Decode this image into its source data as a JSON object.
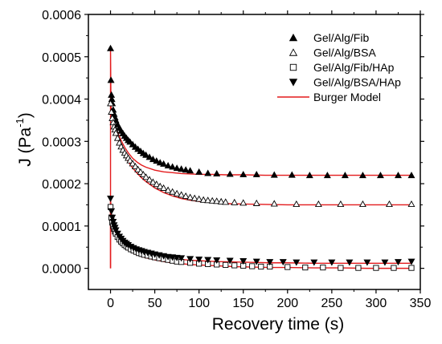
{
  "chart_data": {
    "type": "scatter",
    "xlabel": "Recovery time (s)",
    "ylabel": "J (Pa",
    "ylabel_sup": "-1",
    "ylabel_close": ")",
    "xlim": [
      -25,
      350
    ],
    "ylim": [
      -5e-05,
      0.0006
    ],
    "x_ticks": [
      0,
      50,
      100,
      150,
      200,
      250,
      300,
      350
    ],
    "x_tick_labels": [
      "0",
      "50",
      "100",
      "150",
      "200",
      "250",
      "300",
      "350"
    ],
    "y_ticks": [
      0.0,
      0.0001,
      0.0002,
      0.0003,
      0.0004,
      0.0005,
      0.0006
    ],
    "y_tick_labels": [
      "0.0000",
      "0.0001",
      "0.0002",
      "0.0003",
      "0.0004",
      "0.0005",
      "0.0006"
    ],
    "grid": false,
    "legend_position": "top-right",
    "colors": {
      "markers": "#000000",
      "model": "#e31a1c",
      "axis": "#000000"
    },
    "series": [
      {
        "name": "Gel/Alg/Fib",
        "marker": "triangle-up-filled",
        "x": [
          0,
          0.5,
          1,
          1.5,
          2,
          3,
          4,
          5,
          6,
          8,
          10,
          12,
          14,
          16,
          18,
          20,
          22,
          25,
          28,
          31,
          34,
          37,
          40,
          44,
          48,
          52,
          56,
          60,
          65,
          70,
          75,
          80,
          85,
          90,
          100,
          110,
          120,
          135,
          150,
          165,
          185,
          205,
          225,
          245,
          265,
          285,
          305,
          325,
          340
        ],
        "y": [
          0.00052,
          0.000445,
          0.00041,
          0.0004,
          0.00039,
          0.000375,
          0.000365,
          0.000357,
          0.00035,
          0.00034,
          0.000332,
          0.000325,
          0.000319,
          0.000313,
          0.000308,
          0.000303,
          0.000299,
          0.000293,
          0.000287,
          0.000282,
          0.000277,
          0.000272,
          0.000268,
          0.000263,
          0.000258,
          0.000254,
          0.00025,
          0.000247,
          0.000243,
          0.00024,
          0.000237,
          0.000235,
          0.000233,
          0.000231,
          0.000228,
          0.000225,
          0.000224,
          0.000223,
          0.000222,
          0.000222,
          0.000221,
          0.000221,
          0.00022,
          0.00022,
          0.00022,
          0.00022,
          0.00022,
          0.00022,
          0.00022
        ]
      },
      {
        "name": "Gel/Alg/BSA",
        "marker": "triangle-up-open",
        "x": [
          0,
          1,
          2,
          3,
          4,
          5,
          6,
          8,
          10,
          12,
          14,
          16,
          18,
          20,
          22,
          25,
          28,
          31,
          34,
          37,
          40,
          44,
          48,
          52,
          56,
          60,
          65,
          70,
          75,
          80,
          85,
          90,
          95,
          100,
          105,
          110,
          115,
          120,
          125,
          130,
          140,
          150,
          165,
          185,
          210,
          235,
          260,
          285,
          315,
          340
        ],
        "y": [
          0.00039,
          0.00037,
          0.000355,
          0.000345,
          0.000335,
          0.000328,
          0.00032,
          0.000308,
          0.000297,
          0.000288,
          0.00028,
          0.000273,
          0.000267,
          0.000261,
          0.000255,
          0.000248,
          0.000241,
          0.000234,
          0.000228,
          0.000222,
          0.000216,
          0.00021,
          0.000204,
          0.000199,
          0.000194,
          0.00019,
          0.000185,
          0.000181,
          0.000177,
          0.000174,
          0.000171,
          0.000168,
          0.000166,
          0.000164,
          0.000162,
          0.000161,
          0.00016,
          0.000159,
          0.000158,
          0.000157,
          0.000156,
          0.000155,
          0.000154,
          0.000153,
          0.000152,
          0.000152,
          0.000152,
          0.000152,
          0.000152,
          0.000152
        ]
      },
      {
        "name": "Gel/Alg/Fib/HAp",
        "marker": "square-open",
        "x": [
          0,
          1,
          2,
          3,
          4,
          5,
          6,
          8,
          10,
          12,
          14,
          16,
          18,
          20,
          23,
          26,
          29,
          32,
          35,
          38,
          42,
          46,
          50,
          55,
          60,
          65,
          70,
          75,
          80,
          90,
          100,
          110,
          120,
          130,
          140,
          150,
          160,
          170,
          180,
          200,
          220,
          240,
          260,
          280,
          300,
          320,
          340
        ],
        "y": [
          0.000145,
          0.00012,
          0.000108,
          0.0001,
          9.3e-05,
          8.7e-05,
          8.2e-05,
          7.4e-05,
          6.8e-05,
          6.3e-05,
          5.9e-05,
          5.5e-05,
          5.2e-05,
          4.9e-05,
          4.5e-05,
          4.2e-05,
          3.9e-05,
          3.6e-05,
          3.4e-05,
          3.2e-05,
          3e-05,
          2.8e-05,
          2.6e-05,
          2.4e-05,
          2.2e-05,
          2e-05,
          1.8e-05,
          1.6e-05,
          1.5e-05,
          1.3e-05,
          1.1e-05,
          1e-05,
          9e-06,
          8e-06,
          7e-06,
          6e-06,
          5e-06,
          4e-06,
          4e-06,
          3e-06,
          2e-06,
          2e-06,
          1e-06,
          1e-06,
          1e-06,
          1e-06,
          1e-06
        ]
      },
      {
        "name": "Gel/Alg/BSA/HAp",
        "marker": "triangle-down-filled",
        "x": [
          0,
          1,
          2,
          3,
          4,
          5,
          6,
          8,
          10,
          12,
          14,
          16,
          18,
          20,
          23,
          26,
          29,
          32,
          35,
          38,
          42,
          46,
          50,
          55,
          60,
          65,
          70,
          75,
          80,
          90,
          100,
          110,
          120,
          135,
          150,
          165,
          180,
          195,
          210,
          230,
          250,
          270,
          290,
          310,
          325,
          340
        ],
        "y": [
          0.000165,
          0.000135,
          0.00012,
          0.00011,
          0.000102,
          9.6e-05,
          9e-05,
          8.2e-05,
          7.5e-05,
          7e-05,
          6.5e-05,
          6.1e-05,
          5.8e-05,
          5.5e-05,
          5.1e-05,
          4.8e-05,
          4.5e-05,
          4.3e-05,
          4.1e-05,
          3.9e-05,
          3.7e-05,
          3.5e-05,
          3.3e-05,
          3.1e-05,
          2.9e-05,
          2.7e-05,
          2.6e-05,
          2.5e-05,
          2.4e-05,
          2.2e-05,
          2.1e-05,
          2e-05,
          1.9e-05,
          1.8e-05,
          1.7e-05,
          1.6e-05,
          1.5e-05,
          1.5e-05,
          1.4e-05,
          1.4e-05,
          1.4e-05,
          1.4e-05,
          1.4e-05,
          1.4e-05,
          1.5e-05,
          1.6e-05
        ]
      }
    ],
    "model_name": "Burger Model",
    "model_curves": [
      {
        "x": [
          0,
          0,
          0.5,
          1,
          2,
          3,
          5,
          7,
          10,
          13,
          16,
          20,
          25,
          30,
          35,
          40,
          50,
          60,
          70,
          80,
          90,
          100,
          115,
          130,
          150,
          175,
          200,
          225,
          250,
          275,
          300,
          320,
          340
        ],
        "y": [
          0.0,
          0.00052,
          0.000385,
          0.000368,
          0.000358,
          0.00035,
          0.000338,
          0.000327,
          0.000312,
          0.000298,
          0.000286,
          0.000273,
          0.00026,
          0.000251,
          0.000244,
          0.000239,
          0.000232,
          0.000228,
          0.000226,
          0.000224,
          0.000223,
          0.000222,
          0.000222,
          0.000221,
          0.000221,
          0.00022,
          0.00022,
          0.00022,
          0.00022,
          0.00022,
          0.00022,
          0.00022,
          0.00022
        ]
      },
      {
        "x": [
          0,
          1,
          2,
          3,
          5,
          7,
          10,
          13,
          16,
          20,
          25,
          30,
          35,
          40,
          50,
          60,
          70,
          80,
          90,
          100,
          115,
          130,
          150,
          175,
          200,
          225,
          250,
          275,
          300,
          320,
          340
        ],
        "y": [
          0.000385,
          0.000367,
          0.000354,
          0.000344,
          0.000327,
          0.000313,
          0.000295,
          0.00028,
          0.000267,
          0.000252,
          0.000237,
          0.000225,
          0.000214,
          0.000205,
          0.00019,
          0.000179,
          0.000171,
          0.000165,
          0.000161,
          0.000158,
          0.000155,
          0.000153,
          0.000152,
          0.000151,
          0.00015,
          0.00015,
          0.00015,
          0.00015,
          0.00015,
          0.00015,
          0.00015
        ]
      },
      {
        "x": [
          0,
          0,
          1,
          2,
          3,
          5,
          7,
          10,
          13,
          16,
          20,
          25,
          30,
          35,
          40,
          50,
          60,
          70,
          80,
          90,
          100,
          120,
          140,
          160,
          180,
          200,
          230,
          260,
          290,
          320,
          340
        ],
        "y": [
          0.0,
          0.000165,
          0.00013,
          0.000115,
          0.000106,
          9.3e-05,
          8.4e-05,
          7.4e-05,
          6.6e-05,
          6e-05,
          5.3e-05,
          4.7e-05,
          4.2e-05,
          3.8e-05,
          3.5e-05,
          3e-05,
          2.6e-05,
          2.3e-05,
          2.1e-05,
          1.9e-05,
          1.8e-05,
          1.6e-05,
          1.5e-05,
          1.4e-05,
          1.3e-05,
          1.3e-05,
          1.2e-05,
          1.2e-05,
          1.2e-05,
          1.2e-05,
          1.2e-05
        ]
      },
      {
        "x": [
          0,
          1,
          2,
          3,
          5,
          7,
          10,
          13,
          16,
          20,
          25,
          30,
          35,
          40,
          50,
          60,
          70,
          80,
          90,
          100,
          120,
          140,
          160,
          180,
          200,
          230,
          260,
          290,
          320,
          340
        ],
        "y": [
          0.00015,
          0.000118,
          0.000104,
          9.5e-05,
          8.2e-05,
          7.3e-05,
          6.3e-05,
          5.5e-05,
          4.9e-05,
          4.3e-05,
          3.7e-05,
          3.2e-05,
          2.8e-05,
          2.5e-05,
          2e-05,
          1.6e-05,
          1.3e-05,
          1.1e-05,
          9e-06,
          8e-06,
          6e-06,
          4e-06,
          3e-06,
          2e-06,
          2e-06,
          1e-06,
          1e-06,
          0.0,
          0.0,
          0.0
        ]
      }
    ]
  }
}
